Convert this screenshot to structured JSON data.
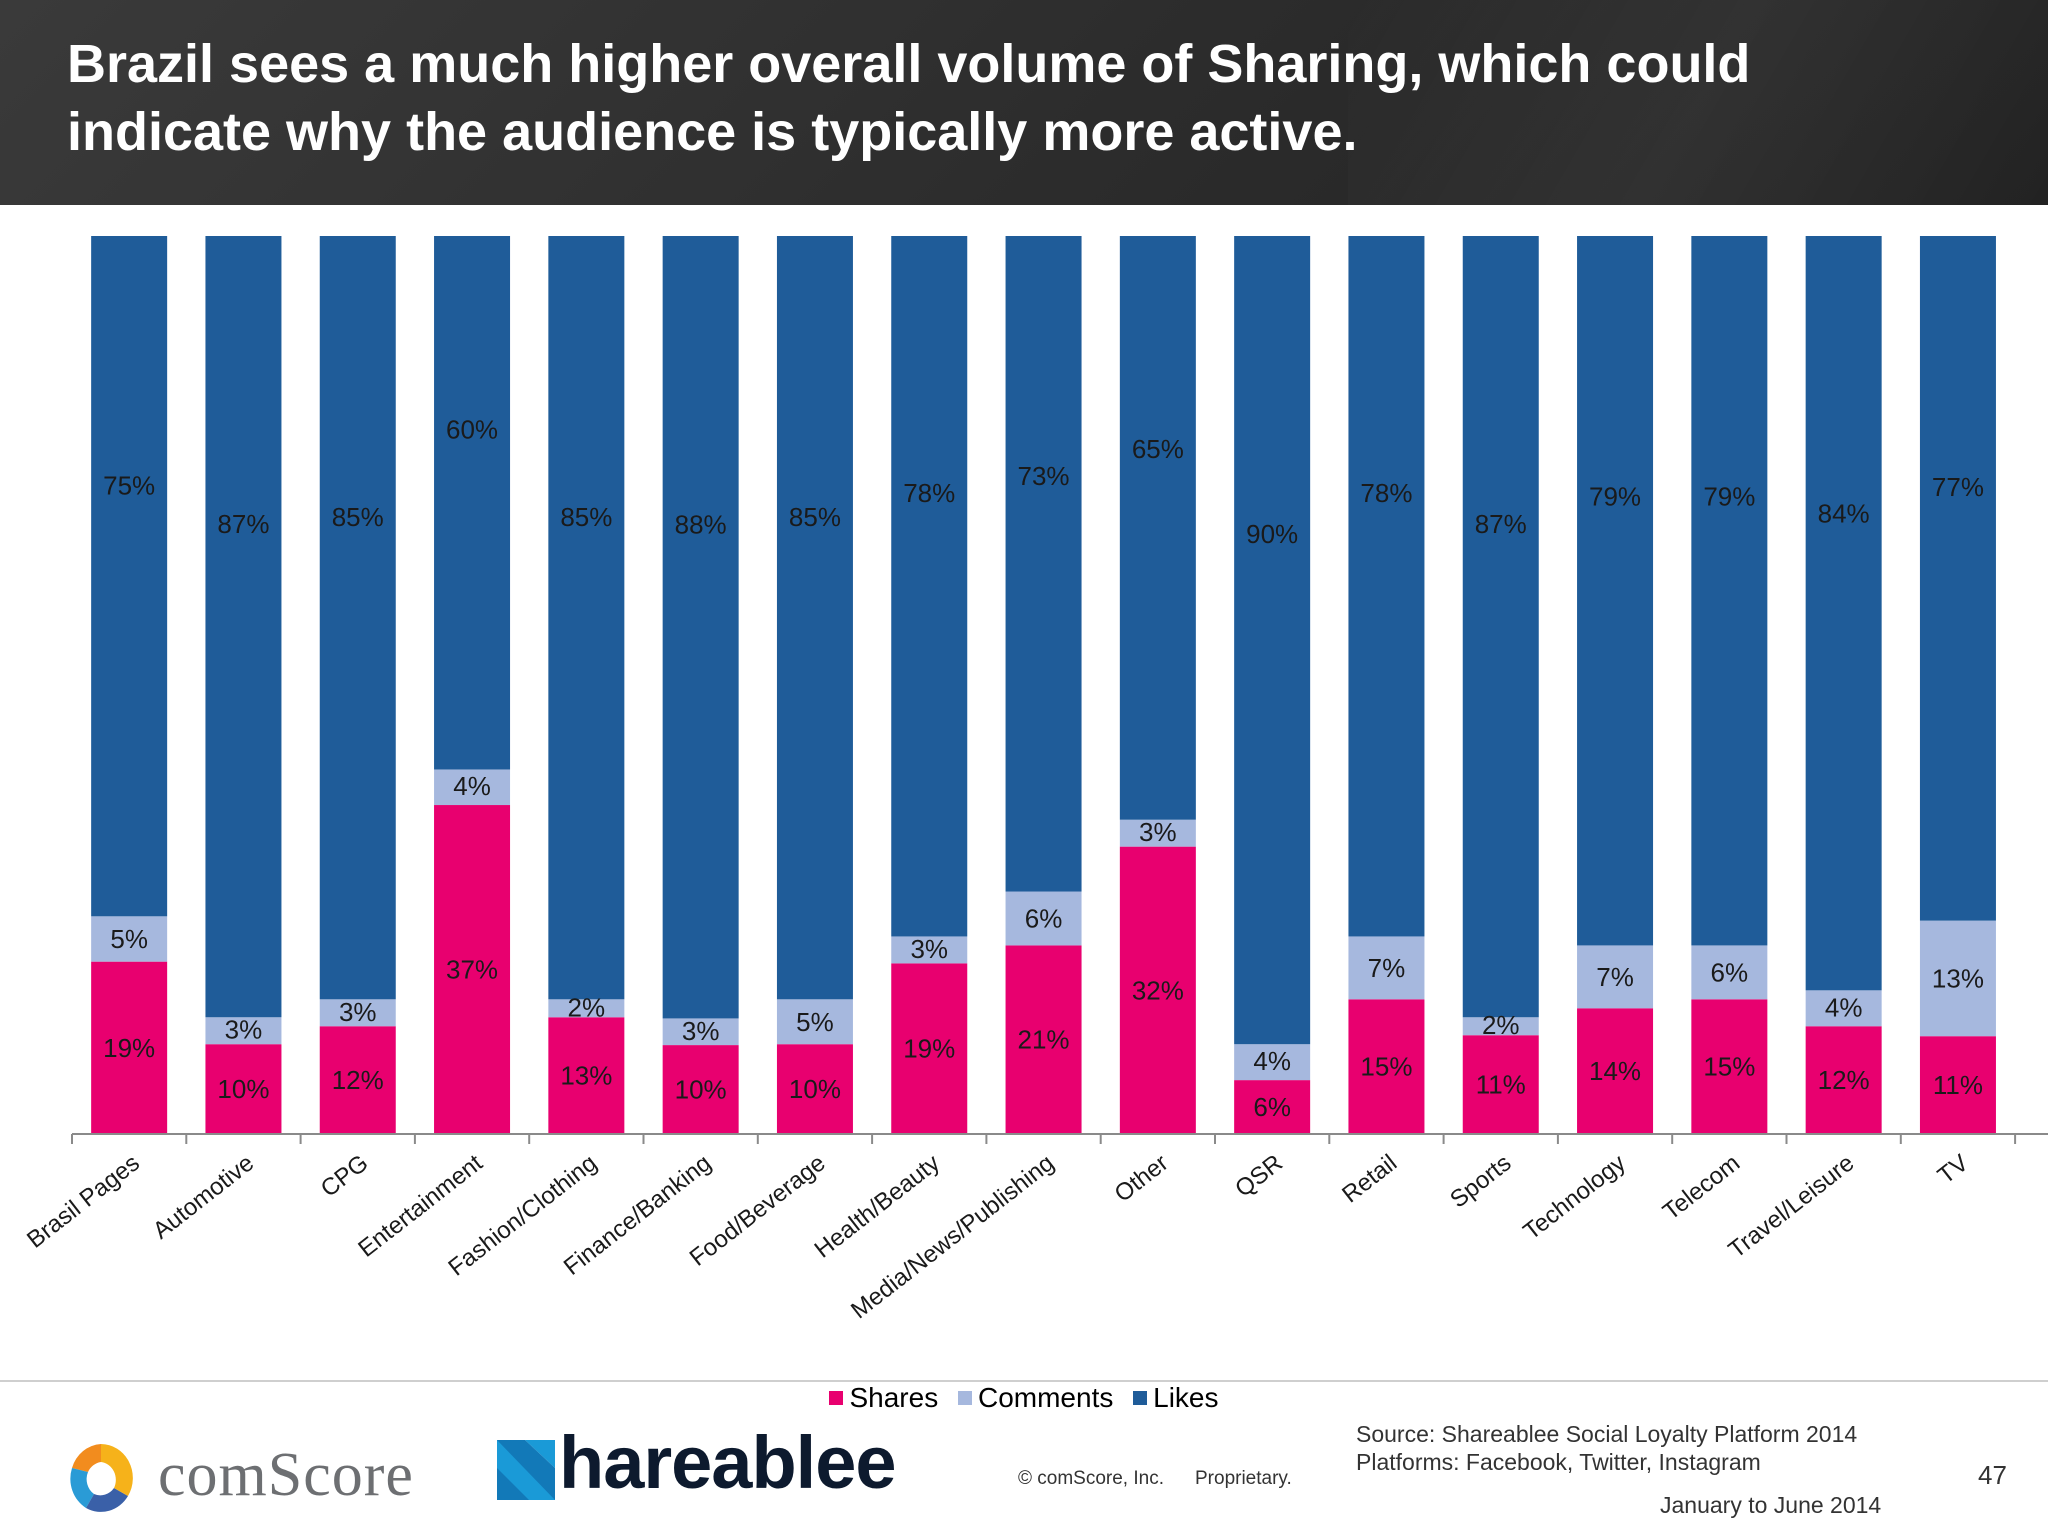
{
  "header": {
    "title": "Brazil sees a much higher overall volume of Sharing, which could indicate why the audience is typically more active."
  },
  "chart_data": {
    "type": "bar",
    "stacked": true,
    "percent_stacked": true,
    "categories": [
      "Brasil Pages",
      "Automotive",
      "CPG",
      "Entertainment",
      "Fashion/Clothing",
      "Finance/Banking",
      "Food/Beverage",
      "Health/Beauty",
      "Media/News/Publishing",
      "Other",
      "QSR",
      "Retail",
      "Sports",
      "Technology",
      "Telecom",
      "Travel/Leisure",
      "TV"
    ],
    "series": [
      {
        "name": "Shares",
        "color": "#e8006f",
        "values": [
          19,
          10,
          12,
          37,
          13,
          10,
          10,
          19,
          21,
          32,
          6,
          15,
          11,
          14,
          15,
          12,
          11
        ]
      },
      {
        "name": "Comments",
        "color": "#a6b8de",
        "values": [
          5,
          3,
          3,
          4,
          2,
          3,
          5,
          3,
          6,
          3,
          4,
          7,
          2,
          7,
          6,
          4,
          13
        ]
      },
      {
        "name": "Likes",
        "color": "#1f5c99",
        "values": [
          75,
          87,
          85,
          60,
          85,
          88,
          85,
          78,
          73,
          65,
          90,
          78,
          87,
          79,
          79,
          84,
          77
        ]
      }
    ],
    "xlabel": "",
    "ylabel": "",
    "ylim": [
      0,
      100
    ],
    "grid": false,
    "legend_position": "bottom"
  },
  "legend": {
    "items": [
      {
        "label": "Shares",
        "color": "#e8006f"
      },
      {
        "label": "Comments",
        "color": "#a6b8de"
      },
      {
        "label": "Likes",
        "color": "#1f5c99"
      }
    ]
  },
  "footer": {
    "comscore_brand": "comScore",
    "shareable_brand": "hareablee",
    "copyright": "© comScore, Inc.",
    "proprietary": "Proprietary.",
    "source_line1": "Source: Shareablee Social Loyalty Platform 2014",
    "source_line2": "Platforms: Facebook, Twitter, Instagram",
    "page_number": "47",
    "date_range": "January to June 2014"
  }
}
